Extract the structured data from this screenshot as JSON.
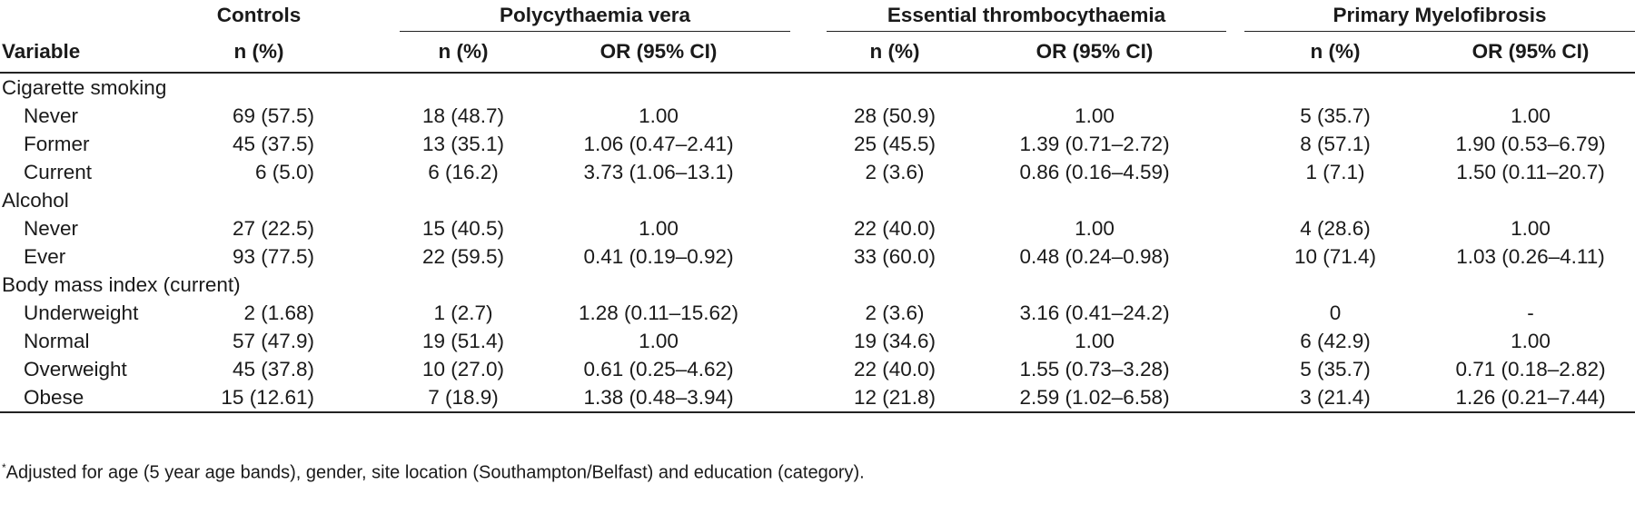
{
  "groups": [
    "Controls",
    "Polycythaemia vera",
    "Essential thrombocythaemia",
    "Primary Myelofibrosis"
  ],
  "subheaders": [
    "Variable",
    "n (%)",
    "n (%)",
    "OR (95% CI)",
    "n (%)",
    "OR (95% CI)",
    "n (%)",
    "OR (95% CI)"
  ],
  "sections": [
    {
      "title": "Cigarette smoking",
      "rows": [
        [
          "Never",
          "69 (57.5)",
          "18 (48.7)",
          "1.00",
          "28 (50.9)",
          "1.00",
          "5 (35.7)",
          "1.00"
        ],
        [
          "Former",
          "45 (37.5)",
          "13 (35.1)",
          "1.06 (0.47–2.41)",
          "25 (45.5)",
          "1.39 (0.71–2.72)",
          "8 (57.1)",
          "1.90 (0.53–6.79)"
        ],
        [
          "Current",
          "6 (5.0)",
          "6 (16.2)",
          "3.73 (1.06–13.1)",
          "2 (3.6)",
          "0.86 (0.16–4.59)",
          "1 (7.1)",
          "1.50 (0.11–20.7)"
        ]
      ]
    },
    {
      "title": "Alcohol",
      "rows": [
        [
          "Never",
          "27 (22.5)",
          "15 (40.5)",
          "1.00",
          "22 (40.0)",
          "1.00",
          "4 (28.6)",
          "1.00"
        ],
        [
          "Ever",
          "93 (77.5)",
          "22 (59.5)",
          "0.41 (0.19–0.92)",
          "33 (60.0)",
          "0.48 (0.24–0.98)",
          "10 (71.4)",
          "1.03 (0.26–4.11)"
        ]
      ]
    },
    {
      "title": "Body mass index (current)",
      "rows": [
        [
          "Underweight",
          "2 (1.68)",
          "1 (2.7)",
          "1.28 (0.11–15.62)",
          "2 (3.6)",
          "3.16 (0.41–24.2)",
          "0",
          "-"
        ],
        [
          "Normal",
          "57 (47.9)",
          "19 (51.4)",
          "1.00",
          "19 (34.6)",
          "1.00",
          "6 (42.9)",
          "1.00"
        ],
        [
          "Overweight",
          "45 (37.8)",
          "10 (27.0)",
          "0.61 (0.25–4.62)",
          "22 (40.0)",
          "1.55 (0.73–3.28)",
          "5 (35.7)",
          "0.71 (0.18–2.82)"
        ],
        [
          "Obese",
          "15 (12.61)",
          "7 (18.9)",
          "1.38 (0.48–3.94)",
          "12 (21.8)",
          "2.59 (1.02–6.58)",
          "3 (21.4)",
          "1.26 (0.21–7.44)"
        ]
      ]
    }
  ],
  "footnote": {
    "mark": "*",
    "text": "Adjusted for age (5 year age bands), gender, site location (Southampton/Belfast) and education (category)."
  }
}
